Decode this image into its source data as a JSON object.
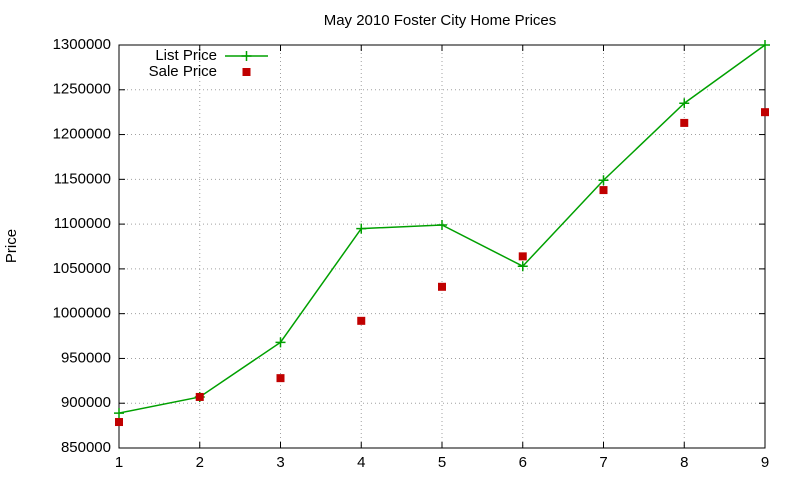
{
  "chart_data": {
    "type": "line",
    "title": "May 2010 Foster City Home Prices",
    "y_label": "Price",
    "x": [
      1,
      2,
      3,
      4,
      5,
      6,
      7,
      8,
      9
    ],
    "series": [
      {
        "name": "List Price",
        "color": "#00a000",
        "style": "linespoints",
        "values": [
          889000,
          907000,
          968000,
          1095000,
          1099000,
          1053000,
          1149000,
          1235000,
          1300000
        ]
      },
      {
        "name": "Sale Price",
        "color": "#c00000",
        "style": "points",
        "values": [
          879000,
          907000,
          928000,
          992000,
          1030000,
          1064000,
          1138000,
          1213000,
          1225000
        ]
      }
    ],
    "xlim": [
      1,
      9
    ],
    "xticks": [
      1,
      2,
      3,
      4,
      5,
      6,
      7,
      8,
      9
    ],
    "ylim": [
      850000,
      1300000
    ],
    "yticks": [
      850000,
      900000,
      950000,
      1000000,
      1050000,
      1100000,
      1150000,
      1200000,
      1250000,
      1300000
    ],
    "grid": true,
    "legend": "top-left"
  }
}
